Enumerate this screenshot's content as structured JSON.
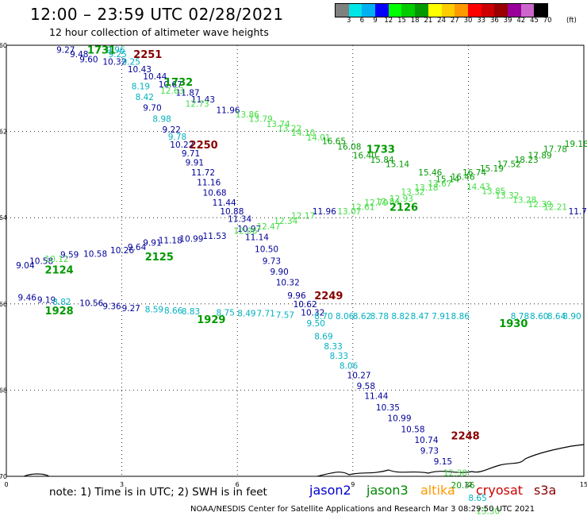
{
  "header": {
    "title": "12:00 – 23:59 UTC 02/28/2021",
    "subtitle": "12 hour collection of altimeter wave heights"
  },
  "colorbar": {
    "colors": [
      "#808080",
      "#00e5e5",
      "#00b0f0",
      "#0000ff",
      "#00ff00",
      "#00cc00",
      "#009900",
      "#ffff00",
      "#ffcc00",
      "#ff9900",
      "#ff0000",
      "#cc0000",
      "#990000",
      "#990099",
      "#cc66cc",
      "#000000"
    ],
    "labels": [
      "3",
      "6",
      "9",
      "12",
      "15",
      "18",
      "21",
      "24",
      "27",
      "30",
      "33",
      "36",
      "39",
      "42",
      "45",
      "70"
    ],
    "unit": "(ft)"
  },
  "axes": {
    "x_ticks": [
      "0",
      "3",
      "6",
      "9",
      "12",
      "15"
    ],
    "y_ticks": [
      "-60",
      "-62",
      "-64",
      "-66",
      "-68",
      "-70"
    ],
    "x_range": [
      0,
      15
    ],
    "y_range": [
      -60,
      -70
    ]
  },
  "footer": {
    "note": "note:  1) Time is in UTC;  2) SWH is in feet",
    "satellites": [
      {
        "name": "jason2",
        "color": "#0000cc"
      },
      {
        "name": "jason3",
        "color": "#008800"
      },
      {
        "name": "altika",
        "color": "#ff9900"
      },
      {
        "name": "cryosat",
        "color": "#cc0000"
      },
      {
        "name": "s3a",
        "color": "#880000"
      }
    ],
    "credit": "NOAA/NESDIS Center for Satellite Applications and Research    Mar  3 08:29:50 UTC 2021"
  },
  "colors": {
    "navy": "#000099",
    "lime": "#44dd44",
    "teal": "#00b0c0",
    "green": "#009900",
    "maroon": "#880000"
  },
  "time_labels": [
    {
      "text": "1731",
      "lon": 2.1,
      "lat": -60.1,
      "color": "green"
    },
    {
      "text": "2251",
      "lon": 3.3,
      "lat": -60.2,
      "color": "maroon"
    },
    {
      "text": "1732",
      "lon": 4.1,
      "lat": -60.85,
      "color": "green"
    },
    {
      "text": "2250",
      "lon": 4.75,
      "lat": -62.3,
      "color": "maroon"
    },
    {
      "text": "1733",
      "lon": 9.35,
      "lat": -62.4,
      "color": "green"
    },
    {
      "text": "2126",
      "lon": 9.95,
      "lat": -63.75,
      "color": "green"
    },
    {
      "text": "2125",
      "lon": 3.6,
      "lat": -64.9,
      "color": "green"
    },
    {
      "text": "2124",
      "lon": 1.0,
      "lat": -65.2,
      "color": "green"
    },
    {
      "text": "2249",
      "lon": 8.0,
      "lat": -65.8,
      "color": "maroon"
    },
    {
      "text": "1928",
      "lon": 1.0,
      "lat": -66.15,
      "color": "green"
    },
    {
      "text": "1929",
      "lon": 4.95,
      "lat": -66.35,
      "color": "green"
    },
    {
      "text": "1930",
      "lon": 12.8,
      "lat": -66.45,
      "color": "green"
    },
    {
      "text": "2248",
      "lon": 11.55,
      "lat": -69.05,
      "color": "maroon"
    }
  ],
  "tracks": [
    {
      "name": "track-2251",
      "points": [
        {
          "v": "9.27",
          "lon": 1.3,
          "lat": -60.1,
          "c": "navy"
        },
        {
          "v": "9.48",
          "lon": 1.65,
          "lat": -60.2,
          "c": "navy"
        },
        {
          "v": "9.60",
          "lon": 1.9,
          "lat": -60.32,
          "c": "navy"
        },
        {
          "v": "9.96",
          "lon": 2.6,
          "lat": -60.1,
          "c": "teal"
        },
        {
          "v": "9.25",
          "lon": 2.65,
          "lat": -60.2,
          "c": "teal"
        },
        {
          "v": "10.32",
          "lon": 2.5,
          "lat": -60.38,
          "c": "navy"
        },
        {
          "v": "9.25",
          "lon": 3.0,
          "lat": -60.38,
          "c": "teal"
        },
        {
          "v": "10.43",
          "lon": 3.15,
          "lat": -60.55,
          "c": "navy"
        },
        {
          "v": "10.44",
          "lon": 3.55,
          "lat": -60.72,
          "c": "navy"
        },
        {
          "v": "10.67",
          "lon": 3.95,
          "lat": -60.9,
          "c": "navy"
        },
        {
          "v": "8.19",
          "lon": 3.25,
          "lat": -60.95,
          "c": "teal"
        },
        {
          "v": "8.42",
          "lon": 3.35,
          "lat": -61.2,
          "c": "teal"
        },
        {
          "v": "9.70",
          "lon": 3.55,
          "lat": -61.45,
          "c": "navy"
        },
        {
          "v": "8.98",
          "lon": 3.8,
          "lat": -61.7,
          "c": "teal"
        },
        {
          "v": "9.22",
          "lon": 4.05,
          "lat": -61.95,
          "c": "navy"
        },
        {
          "v": "9.78",
          "lon": 4.2,
          "lat": -62.12,
          "c": "teal"
        },
        {
          "v": "10.22",
          "lon": 4.25,
          "lat": -62.3,
          "c": "navy"
        },
        {
          "v": "9.71",
          "lon": 4.55,
          "lat": -62.5,
          "c": "navy"
        },
        {
          "v": "9.91",
          "lon": 4.65,
          "lat": -62.72,
          "c": "navy"
        },
        {
          "v": "11.72",
          "lon": 4.8,
          "lat": -62.95,
          "c": "navy"
        },
        {
          "v": "11.16",
          "lon": 4.95,
          "lat": -63.18,
          "c": "navy"
        },
        {
          "v": "10.68",
          "lon": 5.1,
          "lat": -63.42,
          "c": "navy"
        },
        {
          "v": "11.44",
          "lon": 5.35,
          "lat": -63.65,
          "c": "navy"
        },
        {
          "v": "10.88",
          "lon": 5.55,
          "lat": -63.85,
          "c": "navy"
        },
        {
          "v": "11.34",
          "lon": 5.75,
          "lat": -64.02,
          "c": "navy"
        },
        {
          "v": "10.97",
          "lon": 6.0,
          "lat": -64.25,
          "c": "navy"
        },
        {
          "v": "11.14",
          "lon": 6.2,
          "lat": -64.45,
          "c": "navy"
        },
        {
          "v": "10.50",
          "lon": 6.45,
          "lat": -64.72,
          "c": "navy"
        },
        {
          "v": "9.73",
          "lon": 6.65,
          "lat": -65.0,
          "c": "navy"
        },
        {
          "v": "9.90",
          "lon": 6.85,
          "lat": -65.25,
          "c": "navy"
        },
        {
          "v": "10.32",
          "lon": 7.0,
          "lat": -65.5,
          "c": "navy"
        },
        {
          "v": "9.96",
          "lon": 7.3,
          "lat": -65.8,
          "c": "navy"
        },
        {
          "v": "10.62",
          "lon": 7.45,
          "lat": -66.0,
          "c": "navy"
        },
        {
          "v": "10.32",
          "lon": 7.65,
          "lat": -66.2,
          "c": "navy"
        },
        {
          "v": "9.50",
          "lon": 7.8,
          "lat": -66.45,
          "c": "teal"
        },
        {
          "v": "8.69",
          "lon": 8.0,
          "lat": -66.75,
          "c": "teal"
        },
        {
          "v": "8.33",
          "lon": 8.25,
          "lat": -66.98,
          "c": "teal"
        },
        {
          "v": "8.33",
          "lon": 8.4,
          "lat": -67.2,
          "c": "teal"
        },
        {
          "v": "8.06",
          "lon": 8.65,
          "lat": -67.43,
          "c": "teal"
        },
        {
          "v": "10.27",
          "lon": 8.85,
          "lat": -67.65,
          "c": "navy"
        },
        {
          "v": "9.58",
          "lon": 9.1,
          "lat": -67.9,
          "c": "navy"
        },
        {
          "v": "11.44",
          "lon": 9.3,
          "lat": -68.13,
          "c": "navy"
        },
        {
          "v": "10.35",
          "lon": 9.6,
          "lat": -68.4,
          "c": "navy"
        },
        {
          "v": "10.99",
          "lon": 9.9,
          "lat": -68.65,
          "c": "navy"
        },
        {
          "v": "10.58",
          "lon": 10.25,
          "lat": -68.9,
          "c": "navy"
        },
        {
          "v": "10.74",
          "lon": 10.6,
          "lat": -69.15,
          "c": "navy"
        },
        {
          "v": "9.73",
          "lon": 10.75,
          "lat": -69.4,
          "c": "navy"
        },
        {
          "v": "9.15",
          "lon": 11.1,
          "lat": -69.65,
          "c": "navy"
        },
        {
          "v": "12.30",
          "lon": 11.35,
          "lat": -69.92,
          "c": "lime"
        },
        {
          "v": "20.36",
          "lon": 11.55,
          "lat": -70.2,
          "c": "green"
        },
        {
          "v": "8.65",
          "lon": 12.0,
          "lat": -70.5,
          "c": "teal"
        },
        {
          "v": "13.30",
          "lon": 12.2,
          "lat": -70.8,
          "c": "lime"
        }
      ]
    },
    {
      "name": "track-1732",
      "points": [
        {
          "v": "11.87",
          "lon": 4.4,
          "lat": -61.1,
          "c": "navy"
        },
        {
          "v": "12.63",
          "lon": 4.0,
          "lat": -61.05,
          "c": "lime"
        },
        {
          "v": "11.43",
          "lon": 4.8,
          "lat": -61.25,
          "c": "navy"
        },
        {
          "v": "12.73",
          "lon": 4.65,
          "lat": -61.35,
          "c": "lime"
        },
        {
          "v": "11.96",
          "lon": 5.45,
          "lat": -61.5,
          "c": "navy"
        },
        {
          "v": "13.86",
          "lon": 5.95,
          "lat": -61.6,
          "c": "lime"
        },
        {
          "v": "13.79",
          "lon": 6.3,
          "lat": -61.7,
          "c": "lime"
        },
        {
          "v": "13.74",
          "lon": 6.75,
          "lat": -61.82,
          "c": "lime"
        },
        {
          "v": "13.22",
          "lon": 7.05,
          "lat": -61.92,
          "c": "lime"
        },
        {
          "v": "14.10",
          "lon": 7.4,
          "lat": -62.03,
          "c": "lime"
        },
        {
          "v": "14.01",
          "lon": 7.8,
          "lat": -62.14,
          "c": "lime"
        },
        {
          "v": "16.65",
          "lon": 8.2,
          "lat": -62.22,
          "c": "green"
        },
        {
          "v": "16.08",
          "lon": 8.6,
          "lat": -62.35,
          "c": "green"
        },
        {
          "v": "16.40",
          "lon": 9.0,
          "lat": -62.55,
          "c": "green"
        },
        {
          "v": "15.84",
          "lon": 9.45,
          "lat": -62.65,
          "c": "green"
        },
        {
          "v": "15.14",
          "lon": 9.85,
          "lat": -62.75,
          "c": "green"
        },
        {
          "v": "15.46",
          "lon": 10.7,
          "lat": -62.95,
          "c": "green"
        },
        {
          "v": "15.14",
          "lon": 11.15,
          "lat": -63.1,
          "c": "green"
        },
        {
          "v": "16.46",
          "lon": 11.55,
          "lat": -63.05,
          "c": "green"
        },
        {
          "v": "14.43",
          "lon": 11.95,
          "lat": -63.28,
          "c": "lime"
        },
        {
          "v": "13.85",
          "lon": 12.35,
          "lat": -63.38,
          "c": "lime"
        },
        {
          "v": "13.32",
          "lon": 12.7,
          "lat": -63.48,
          "c": "lime"
        },
        {
          "v": "13.28",
          "lon": 13.15,
          "lat": -63.58,
          "c": "lime"
        },
        {
          "v": "12.39",
          "lon": 13.55,
          "lat": -63.68,
          "c": "lime"
        },
        {
          "v": "12.21",
          "lon": 13.95,
          "lat": -63.75,
          "c": "lime"
        },
        {
          "v": "11.71",
          "lon": 14.6,
          "lat": -63.85,
          "c": "navy"
        }
      ]
    },
    {
      "name": "track-2126",
      "points": [
        {
          "v": "12.06",
          "lon": 5.9,
          "lat": -64.3,
          "c": "lime"
        },
        {
          "v": "12.47",
          "lon": 6.5,
          "lat": -64.2,
          "c": "lime"
        },
        {
          "v": "12.34",
          "lon": 6.95,
          "lat": -64.07,
          "c": "lime"
        },
        {
          "v": "12.17",
          "lon": 7.4,
          "lat": -63.95,
          "c": "lime"
        },
        {
          "v": "11.96",
          "lon": 7.95,
          "lat": -63.85,
          "c": "navy"
        },
        {
          "v": "13.07",
          "lon": 8.6,
          "lat": -63.85,
          "c": "lime"
        },
        {
          "v": "12.61",
          "lon": 8.95,
          "lat": -63.75,
          "c": "lime"
        },
        {
          "v": "12.79",
          "lon": 9.3,
          "lat": -63.65,
          "c": "lime"
        },
        {
          "v": "12.84",
          "lon": 9.6,
          "lat": -63.62,
          "c": "lime"
        },
        {
          "v": "12.93",
          "lon": 9.95,
          "lat": -63.55,
          "c": "lime"
        },
        {
          "v": "13.32",
          "lon": 10.25,
          "lat": -63.4,
          "c": "lime"
        },
        {
          "v": "13.18",
          "lon": 10.6,
          "lat": -63.3,
          "c": "lime"
        },
        {
          "v": "13.67",
          "lon": 10.95,
          "lat": -63.2,
          "c": "lime"
        },
        {
          "v": "16.74",
          "lon": 11.85,
          "lat": -62.95,
          "c": "green"
        },
        {
          "v": "15.19",
          "lon": 12.3,
          "lat": -62.85,
          "c": "green"
        },
        {
          "v": "17.52",
          "lon": 12.75,
          "lat": -62.75,
          "c": "green"
        },
        {
          "v": "18.23",
          "lon": 13.2,
          "lat": -62.65,
          "c": "green"
        },
        {
          "v": "17.89",
          "lon": 13.55,
          "lat": -62.55,
          "c": "green"
        },
        {
          "v": "17.78",
          "lon": 13.95,
          "lat": -62.4,
          "c": "green"
        },
        {
          "v": "19.16",
          "lon": 14.5,
          "lat": -62.28,
          "c": "green"
        }
      ]
    },
    {
      "name": "track-2125",
      "points": [
        {
          "v": "9.04",
          "lon": 0.25,
          "lat": -65.1,
          "c": "navy"
        },
        {
          "v": "10.58",
          "lon": 0.6,
          "lat": -65.0,
          "c": "navy"
        },
        {
          "v": "10.12",
          "lon": 1.0,
          "lat": -64.95,
          "c": "lime"
        },
        {
          "v": "9.59",
          "lon": 1.4,
          "lat": -64.85,
          "c": "navy"
        },
        {
          "v": "10.58",
          "lon": 2.0,
          "lat": -64.83,
          "c": "navy"
        },
        {
          "v": "10.26",
          "lon": 2.7,
          "lat": -64.75,
          "c": "navy"
        },
        {
          "v": "9.64",
          "lon": 3.15,
          "lat": -64.68,
          "c": "navy"
        },
        {
          "v": "9.91",
          "lon": 3.55,
          "lat": -64.58,
          "c": "navy"
        },
        {
          "v": "11.18",
          "lon": 3.95,
          "lat": -64.52,
          "c": "navy"
        },
        {
          "v": "10.99",
          "lon": 4.5,
          "lat": -64.48,
          "c": "navy"
        },
        {
          "v": "11.53",
          "lon": 5.1,
          "lat": -64.42,
          "c": "navy"
        }
      ]
    },
    {
      "name": "track-1929",
      "points": [
        {
          "v": "9.46",
          "lon": 0.3,
          "lat": -65.85,
          "c": "navy"
        },
        {
          "v": "9.19",
          "lon": 0.8,
          "lat": -65.9,
          "c": "navy"
        },
        {
          "v": "8.82",
          "lon": 1.2,
          "lat": -65.95,
          "c": "teal"
        },
        {
          "v": "10.56",
          "lon": 1.9,
          "lat": -65.98,
          "c": "navy"
        },
        {
          "v": "9.36",
          "lon": 2.5,
          "lat": -66.05,
          "c": "navy"
        },
        {
          "v": "9.27",
          "lon": 3.0,
          "lat": -66.1,
          "c": "navy"
        },
        {
          "v": "8.59",
          "lon": 3.6,
          "lat": -66.12,
          "c": "teal"
        },
        {
          "v": "8.66",
          "lon": 4.1,
          "lat": -66.15,
          "c": "teal"
        },
        {
          "v": "8.83",
          "lon": 4.55,
          "lat": -66.17,
          "c": "teal"
        },
        {
          "v": "8.75",
          "lon": 5.45,
          "lat": -66.2,
          "c": "teal"
        },
        {
          "v": "8.49",
          "lon": 6.0,
          "lat": -66.22,
          "c": "teal"
        },
        {
          "v": "7.71",
          "lon": 6.5,
          "lat": -66.22,
          "c": "teal"
        },
        {
          "v": "7.57",
          "lon": 7.0,
          "lat": -66.25,
          "c": "teal"
        },
        {
          "v": "8.70",
          "lon": 8.0,
          "lat": -66.28,
          "c": "teal"
        },
        {
          "v": "8.06",
          "lon": 8.55,
          "lat": -66.28,
          "c": "teal"
        },
        {
          "v": "8.62",
          "lon": 9.0,
          "lat": -66.28,
          "c": "teal"
        },
        {
          "v": "8.78",
          "lon": 9.45,
          "lat": -66.28,
          "c": "teal"
        },
        {
          "v": "8.82",
          "lon": 10.0,
          "lat": -66.28,
          "c": "teal"
        },
        {
          "v": "8.47",
          "lon": 10.5,
          "lat": -66.28,
          "c": "teal"
        },
        {
          "v": "7.91",
          "lon": 11.05,
          "lat": -66.28,
          "c": "teal"
        },
        {
          "v": "8.86",
          "lon": 11.55,
          "lat": -66.28,
          "c": "teal"
        },
        {
          "v": "8.78",
          "lon": 13.1,
          "lat": -66.28,
          "c": "teal"
        },
        {
          "v": "8.60",
          "lon": 13.6,
          "lat": -66.28,
          "c": "teal"
        },
        {
          "v": "8.64",
          "lon": 14.05,
          "lat": -66.28,
          "c": "teal"
        },
        {
          "v": "8.90",
          "lon": 14.45,
          "lat": -66.28,
          "c": "teal"
        }
      ]
    }
  ]
}
